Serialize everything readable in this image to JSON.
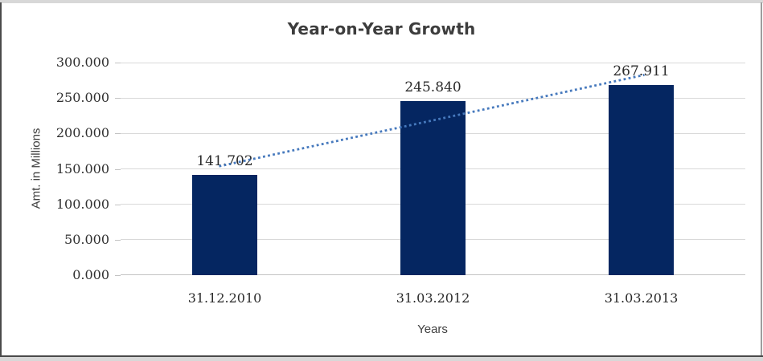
{
  "chart_data": {
    "type": "bar",
    "title": "Year-on-Year Growth",
    "xlabel": "Years",
    "ylabel": "Amt. in Millions",
    "categories": [
      "31.12.2010",
      "31.03.2012",
      "31.03.2013"
    ],
    "values": [
      141.702,
      245.84,
      267.911
    ],
    "data_labels": [
      "141.702",
      "245.840",
      "267.911"
    ],
    "ylim": [
      0,
      300
    ],
    "yticks": [
      0,
      50,
      100,
      150,
      200,
      250,
      300
    ],
    "ytick_labels": [
      "0.000",
      "50.000",
      "100.000",
      "150.000",
      "200.000",
      "250.000",
      "300.000"
    ],
    "grid": true,
    "legend": "none",
    "trendline": {
      "type": "linear",
      "style": "dotted"
    },
    "colors": {
      "bar": "#052661",
      "trendline": "#4679bd",
      "gridline": "#d9d9d9",
      "axis": "#c3c3c3",
      "frame_light": "#d8d8d8",
      "frame_mid": "#9d9d9d",
      "frame_dark": "#4a4a4a"
    }
  }
}
